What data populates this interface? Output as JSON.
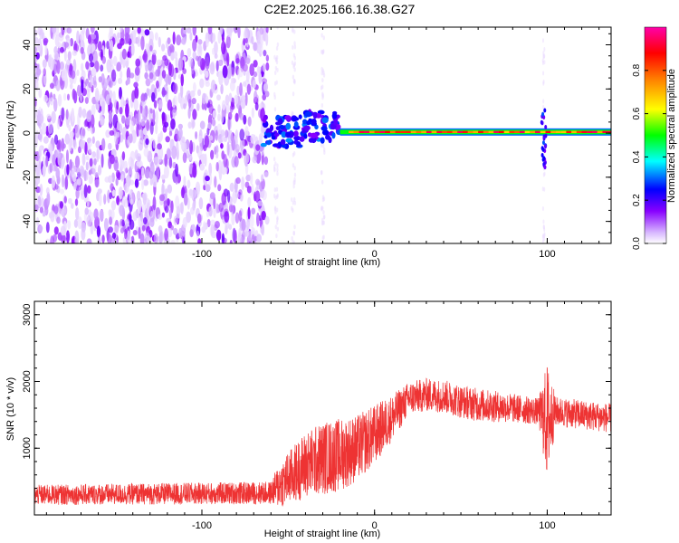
{
  "figure": {
    "title": "C2E2.2025.166.16.38.G27"
  },
  "chart_data": [
    {
      "type": "heatmap",
      "title": "C2E2.2025.166.16.38.G27",
      "xlabel": "Height of straight line (km)",
      "ylabel": "Frequency (Hz)",
      "xlim": [
        -197,
        137
      ],
      "ylim": [
        -50,
        48
      ],
      "x_ticks": [
        -100,
        0,
        100
      ],
      "y_ticks": [
        -40,
        -20,
        0,
        20,
        40
      ],
      "grid": false,
      "colorbar": {
        "label": "Normalized spectral amplitude",
        "range": [
          0,
          1
        ],
        "ticks": [
          0.0,
          0.2,
          0.4,
          0.6,
          0.8
        ],
        "tick_labels": [
          "0.0",
          "0.2",
          "0.4",
          "0.6",
          "0.8"
        ],
        "colormap": [
          "#ffffff",
          "#d8b8ff",
          "#8800ff",
          "#0000ff",
          "#00ffff",
          "#00ff00",
          "#ffff00",
          "#ff8800",
          "#ff0000",
          "#ff00aa"
        ]
      },
      "features": {
        "noise_region_km": [
          -197,
          -62
        ],
        "scattered_noise_km": [
          -62,
          -20
        ],
        "carrier_freq_hz": 0.5,
        "carrier_start_km": -20,
        "spike_at_km": 98
      }
    },
    {
      "type": "line",
      "xlabel": "Height of straight line (km)",
      "ylabel": "SNR (10 * v/v)",
      "xlim": [
        -197,
        137
      ],
      "ylim": [
        0,
        3200
      ],
      "x_ticks": [
        -100,
        0,
        100
      ],
      "y_ticks": [
        1000,
        2000,
        3000
      ],
      "grid": false,
      "series": [
        {
          "color": "#ee3333",
          "profile": {
            "x": [
              -197,
              -60,
              -55,
              -40,
              -30,
              -20,
              -10,
              0,
              10,
              20,
              30,
              40,
              50,
              60,
              80,
              95,
              100,
              105,
              120,
              137
            ],
            "y": [
              300,
              330,
              450,
              750,
              850,
              900,
              1000,
              1200,
              1450,
              1750,
              1800,
              1780,
              1700,
              1650,
              1600,
              1550,
              1400,
              1550,
              1500,
              1450
            ]
          },
          "spread": {
            "x": [
              -197,
              -60,
              -55,
              -40,
              -30,
              -20,
              -10,
              0,
              10,
              20,
              30,
              40,
              50,
              60,
              80,
              95,
              100,
              105,
              120,
              137
            ],
            "y": [
              150,
              170,
              350,
              500,
              550,
              550,
              500,
              450,
              350,
              250,
              250,
              250,
              250,
              250,
              220,
              200,
              900,
              220,
              220,
              220
            ]
          }
        }
      ]
    }
  ]
}
